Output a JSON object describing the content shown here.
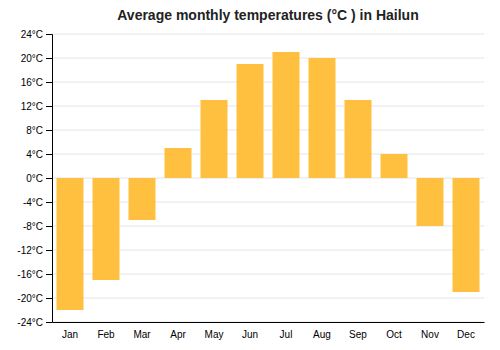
{
  "chart_data": {
    "type": "bar",
    "title": "Average monthly temperatures (°C ) in Hailun",
    "categories": [
      "Jan",
      "Feb",
      "Mar",
      "Apr",
      "May",
      "Jun",
      "Jul",
      "Aug",
      "Sep",
      "Oct",
      "Nov",
      "Dec"
    ],
    "values": [
      -22,
      -17,
      -7,
      5,
      13,
      19,
      21,
      20,
      13,
      4,
      -8,
      -19
    ],
    "color": "#FFC040",
    "ylim": [
      -24,
      24
    ],
    "yticks": [
      {
        "value": -24,
        "label": "-24°C"
      },
      {
        "value": -20,
        "label": "-20°C"
      },
      {
        "value": -16,
        "label": "-16°C"
      },
      {
        "value": -12,
        "label": "-12°C"
      },
      {
        "value": -8,
        "label": "-8°C"
      },
      {
        "value": -4,
        "label": "-4°C"
      },
      {
        "value": 0,
        "label": "0°C"
      },
      {
        "value": 4,
        "label": "4°C"
      },
      {
        "value": 8,
        "label": "8°C"
      },
      {
        "value": 12,
        "label": "12°C"
      },
      {
        "value": 16,
        "label": "16°C"
      },
      {
        "value": 20,
        "label": "20°C"
      },
      {
        "value": 24,
        "label": "24°C"
      }
    ],
    "grid": true
  }
}
